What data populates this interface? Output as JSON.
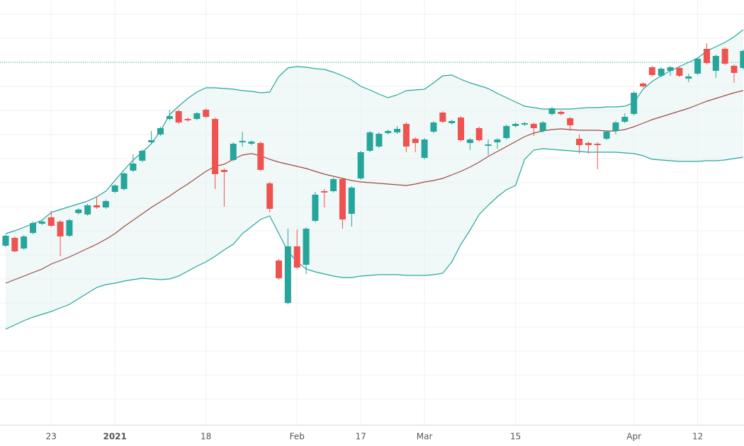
{
  "chart_data": {
    "type": "candlestick",
    "categories": [
      null,
      null,
      null,
      null,
      null,
      "23",
      null,
      null,
      null,
      null,
      null,
      null,
      "2021",
      null,
      null,
      null,
      null,
      null,
      null,
      null,
      null,
      null,
      "18",
      null,
      null,
      null,
      null,
      null,
      null,
      null,
      null,
      null,
      "Feb",
      null,
      null,
      null,
      null,
      null,
      null,
      "17",
      null,
      null,
      null,
      null,
      null,
      null,
      "Mar",
      null,
      null,
      null,
      null,
      null,
      null,
      null,
      null,
      null,
      "15",
      null,
      null,
      null,
      null,
      null,
      null,
      null,
      null,
      null,
      null,
      null,
      null,
      "Apr",
      null,
      null,
      null,
      null,
      null,
      null,
      "12",
      null,
      null,
      null,
      null,
      null
    ],
    "open": [
      253,
      264,
      249,
      271,
      284,
      293,
      287,
      267,
      299,
      297,
      310,
      307,
      329,
      333,
      359,
      373,
      399,
      410,
      432,
      443,
      432,
      432,
      445,
      432,
      360,
      374,
      399,
      397,
      398,
      341,
      232,
      172,
      252,
      226,
      288,
      330,
      330,
      347,
      298,
      348,
      387,
      393,
      412,
      413,
      425,
      404,
      377,
      414,
      441,
      426,
      434,
      398,
      419,
      394,
      399,
      405,
      422,
      424,
      425,
      415,
      439,
      442,
      433,
      404,
      398,
      397,
      404,
      415,
      428,
      439,
      482,
      505,
      493,
      500,
      504,
      489,
      496,
      531,
      500,
      531,
      507,
      504
    ],
    "high": [
      269,
      266,
      268,
      287,
      289,
      302,
      289,
      291,
      306,
      312,
      322,
      318,
      340,
      357,
      382,
      389,
      415,
      421,
      445,
      445,
      434,
      442,
      447,
      434,
      362,
      399,
      414,
      402,
      400,
      343,
      234,
      277,
      276,
      279,
      329,
      333,
      349,
      349,
      337,
      387,
      415,
      413,
      417,
      422,
      427,
      406,
      405,
      429,
      443,
      431,
      436,
      405,
      421,
      403,
      405,
      424,
      427,
      428,
      427,
      429,
      449,
      444,
      435,
      410,
      400,
      399,
      416,
      429,
      440,
      471,
      484,
      507,
      505,
      507,
      506,
      496,
      519,
      539,
      523,
      533,
      509,
      530
    ],
    "low": [
      251,
      244,
      247,
      269,
      282,
      279,
      238,
      265,
      297,
      295,
      305,
      305,
      327,
      331,
      357,
      371,
      397,
      408,
      430,
      425,
      428,
      430,
      433,
      333,
      308,
      372,
      393,
      395,
      358,
      300,
      205,
      170,
      220,
      213,
      286,
      307,
      328,
      277,
      280,
      346,
      385,
      391,
      410,
      411,
      385,
      385,
      375,
      412,
      426,
      424,
      400,
      388,
      400,
      381,
      390,
      403,
      420,
      422,
      408,
      413,
      437,
      437,
      415,
      383,
      383,
      361,
      402,
      410,
      426,
      437,
      476,
      492,
      491,
      493,
      491,
      484,
      494,
      509,
      490,
      508,
      483,
      502
    ],
    "close": [
      267,
      245,
      266,
      285,
      287,
      281,
      266,
      289,
      304,
      310,
      307,
      316,
      338,
      355,
      369,
      387,
      402,
      419,
      436,
      427,
      430,
      440,
      435,
      354,
      357,
      397,
      401,
      400,
      360,
      305,
      207,
      252,
      222,
      277,
      325,
      328,
      347,
      290,
      335,
      385,
      413,
      411,
      415,
      418,
      393,
      398,
      403,
      427,
      428,
      429,
      402,
      403,
      402,
      396,
      403,
      422,
      425,
      426,
      419,
      427,
      447,
      439,
      423,
      395,
      395,
      395,
      414,
      427,
      435,
      469,
      478,
      494,
      503,
      505,
      493,
      492,
      517,
      511,
      521,
      510,
      497,
      528
    ],
    "upper_band": [
      270,
      274,
      279,
      284,
      289,
      300,
      304,
      308,
      312,
      316,
      322,
      330,
      345,
      360,
      374,
      385,
      397,
      415,
      438,
      450,
      461,
      470,
      476,
      476,
      475,
      474,
      472,
      471,
      469,
      470,
      492,
      504,
      506,
      505,
      503,
      502,
      498,
      493,
      487,
      478,
      473,
      467,
      462,
      466,
      472,
      473,
      474,
      483,
      493,
      494,
      488,
      483,
      479,
      475,
      468,
      462,
      456,
      450,
      448,
      446,
      446,
      446,
      446,
      447,
      448,
      448,
      449,
      449,
      450,
      455,
      474,
      485,
      493,
      500,
      506,
      512,
      518,
      528,
      534,
      540,
      548,
      558
    ],
    "middle_band": [
      200,
      205,
      210,
      215,
      220,
      227,
      232,
      237,
      243,
      249,
      255,
      262,
      270,
      280,
      289,
      298,
      307,
      315,
      323,
      332,
      340,
      349,
      358,
      365,
      368,
      375,
      381,
      383,
      380,
      375,
      371,
      368,
      365,
      362,
      358,
      354,
      351,
      348,
      345,
      343,
      342,
      341,
      340,
      339,
      338,
      340,
      343,
      345,
      348,
      353,
      358,
      364,
      371,
      379,
      386,
      393,
      400,
      407,
      412,
      415,
      417,
      418,
      417,
      416,
      416,
      416,
      415,
      415,
      417,
      421,
      426,
      431,
      435,
      439,
      443,
      447,
      452,
      457,
      461,
      465,
      469,
      472
    ],
    "lower_band": [
      135,
      141,
      147,
      152,
      156,
      160,
      165,
      170,
      178,
      186,
      194,
      198,
      200,
      203,
      205,
      207,
      206,
      205,
      206,
      210,
      217,
      224,
      230,
      238,
      247,
      255,
      270,
      280,
      290,
      295,
      270,
      245,
      230,
      220,
      216,
      213,
      210,
      208,
      208,
      210,
      211,
      212,
      212,
      212,
      211,
      211,
      211,
      212,
      214,
      230,
      255,
      275,
      297,
      310,
      322,
      332,
      338,
      375,
      388,
      390,
      389,
      388,
      387,
      386,
      385,
      385,
      385,
      385,
      384,
      383,
      380,
      375,
      374,
      373,
      372,
      372,
      372,
      373,
      373,
      374,
      376,
      378
    ],
    "price_line": 512,
    "up_color": "#26a69a",
    "down_color": "#ef5350",
    "band_color": "#26a69a",
    "band_fill": "#e6f4f3",
    "middle_color": "#9c4a45",
    "ylim": [
      0,
      600
    ],
    "yticks": [
      36,
      70,
      104,
      138,
      172,
      206,
      240,
      274,
      308,
      342,
      376,
      410,
      444,
      478,
      512,
      546,
      580
    ],
    "grid": true
  }
}
